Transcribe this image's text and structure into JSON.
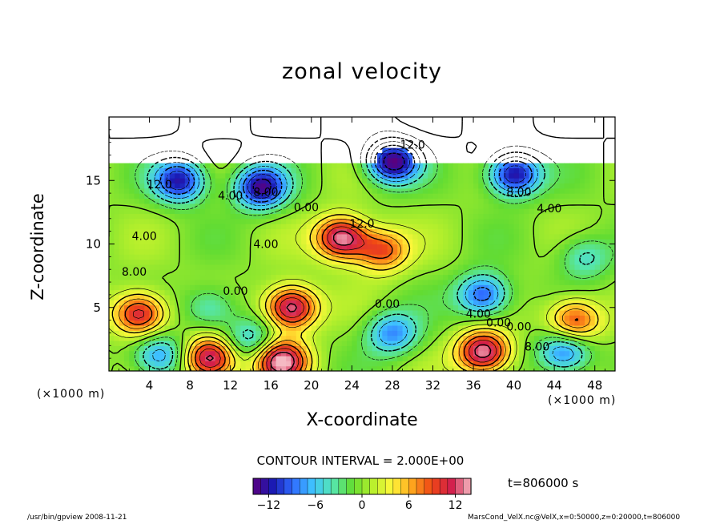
{
  "window": {
    "title": "zonal velocity"
  },
  "chart_data": {
    "type": "heatmap",
    "title": "zonal velocity",
    "xlabel": "X-coordinate",
    "ylabel": "Z-coordinate",
    "x_unit_label": "(×1000 m)",
    "y_unit_label": "(×1000 m)",
    "xlim": [
      0,
      50
    ],
    "ylim": [
      0,
      20
    ],
    "x_ticks": [
      4,
      8,
      12,
      16,
      20,
      24,
      28,
      32,
      36,
      40,
      44,
      48
    ],
    "y_ticks": [
      5,
      10,
      15
    ],
    "contour_interval_label": "CONTOUR INTERVAL = 2.000E+00",
    "contour_interval": 2.0,
    "time_label": "t=806000 s",
    "colorbar": {
      "range": [
        -14,
        14
      ],
      "ticks": [
        -12,
        -6,
        0,
        6,
        12
      ],
      "colormap": [
        "#5a007f",
        "#1a1ab4",
        "#2f6bff",
        "#3fc3ff",
        "#55e6b2",
        "#62dc32",
        "#b4ef2c",
        "#fff83a",
        "#ffa81e",
        "#f04814",
        "#d21e4b",
        "#f5b9c3"
      ]
    },
    "features": [
      {
        "x": 3,
        "z": 4.5,
        "value": 12
      },
      {
        "x": 18,
        "z": 5,
        "value": 14
      },
      {
        "x": 27,
        "z": 9.5,
        "value": 9
      },
      {
        "x": 23,
        "z": 10.5,
        "value": 14
      },
      {
        "x": 46,
        "z": 4,
        "value": 10
      },
      {
        "x": 37,
        "z": 1.5,
        "value": 14
      },
      {
        "x": 10,
        "z": 1,
        "value": 14
      },
      {
        "x": 17,
        "z": 0.8,
        "value": 14
      },
      {
        "x": 37,
        "z": 6,
        "value": -10
      },
      {
        "x": 10,
        "z": 5,
        "value": -5
      },
      {
        "x": 28,
        "z": 3,
        "value": -8
      },
      {
        "x": 5,
        "z": 1.2,
        "value": -8
      },
      {
        "x": 14,
        "z": 2.5,
        "value": -6
      },
      {
        "x": 47,
        "z": 9,
        "value": -5
      },
      {
        "x": 45,
        "z": 1.5,
        "value": -9
      },
      {
        "x": 28,
        "z": 16.5,
        "value": -14
      },
      {
        "x": 15,
        "z": 14.5,
        "value": -13
      },
      {
        "x": 40,
        "z": 15.5,
        "value": -13
      },
      {
        "x": 7,
        "z": 15,
        "value": -12
      }
    ],
    "contour_labels": [
      {
        "text": "12.0",
        "x": 30,
        "z": 17.5
      },
      {
        "text": "12.0",
        "x": 5,
        "z": 14.4
      },
      {
        "text": "4.00",
        "x": 12,
        "z": 13.5
      },
      {
        "text": "8.00",
        "x": 15.5,
        "z": 13.8
      },
      {
        "text": "0.00",
        "x": 19.5,
        "z": 12.6
      },
      {
        "text": "12.0",
        "x": 25,
        "z": 11.3
      },
      {
        "text": "4.00",
        "x": 43.5,
        "z": 12.5
      },
      {
        "text": "8.00",
        "x": 40.5,
        "z": 13.8
      },
      {
        "text": "4.00",
        "x": 3.5,
        "z": 10.3
      },
      {
        "text": "4.00",
        "x": 15.5,
        "z": 9.7
      },
      {
        "text": "8.00",
        "x": 2.5,
        "z": 7.5
      },
      {
        "text": "0.00",
        "x": 12.5,
        "z": 6
      },
      {
        "text": "0.00",
        "x": 27.5,
        "z": 5
      },
      {
        "text": "4.00",
        "x": 36.5,
        "z": 4.2
      },
      {
        "text": "0.00",
        "x": 38.5,
        "z": 3.5
      },
      {
        "text": "0.00",
        "x": 40.5,
        "z": 3.2
      },
      {
        "text": "8.00",
        "x": 42.3,
        "z": 1.6
      }
    ]
  },
  "footer": {
    "left": "/usr/bin/gpview   2008-11-21",
    "right": "MarsCond_VelX.nc@VelX,x=0:50000,z=0:20000,t=806000"
  }
}
